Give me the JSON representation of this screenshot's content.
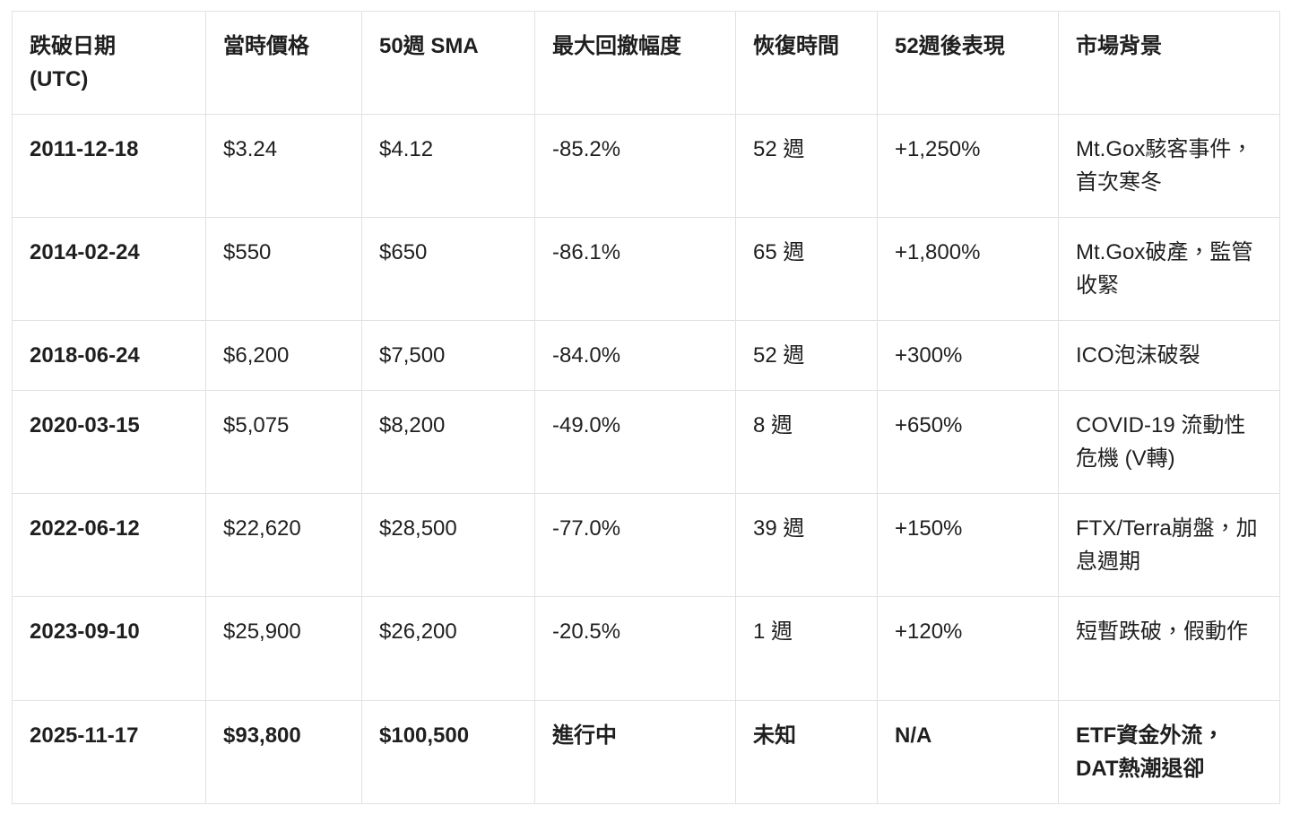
{
  "colors": {
    "background": "#ffffff",
    "border": "#e2e2e2",
    "text": "#1f1f1f"
  },
  "table": {
    "headers": [
      {
        "id": "break_date",
        "label": "跌破日期\n(UTC)"
      },
      {
        "id": "price",
        "label": "當時價格"
      },
      {
        "id": "sma",
        "label": "50週 SMA"
      },
      {
        "id": "drawdown",
        "label": "最大回撤幅度"
      },
      {
        "id": "recovery",
        "label": "恢復時間"
      },
      {
        "id": "performance",
        "label": "52週後表現"
      },
      {
        "id": "background",
        "label": "市場背景"
      }
    ],
    "rows": [
      {
        "break_date": "2011-12-18",
        "price": "$3.24",
        "sma": "$4.12",
        "drawdown": "-85.2%",
        "recovery": "52 週",
        "performance": "+1,250%",
        "background": "Mt.Gox駭客事件，首次寒冬",
        "bold_row": false
      },
      {
        "break_date": "2014-02-24",
        "price": "$550",
        "sma": "$650",
        "drawdown": "-86.1%",
        "recovery": "65 週",
        "performance": "+1,800%",
        "background": "Mt.Gox破產，監管收緊",
        "bold_row": false
      },
      {
        "break_date": "2018-06-24",
        "price": "$6,200",
        "sma": "$7,500",
        "drawdown": "-84.0%",
        "recovery": "52 週",
        "performance": "+300%",
        "background": "ICO泡沫破裂",
        "bold_row": false
      },
      {
        "break_date": "2020-03-15",
        "price": "$5,075",
        "sma": "$8,200",
        "drawdown": "-49.0%",
        "recovery": "8 週",
        "performance": "+650%",
        "background": "COVID-19 流動性危機 (V轉)",
        "bold_row": false
      },
      {
        "break_date": "2022-06-12",
        "price": "$22,620",
        "sma": "$28,500",
        "drawdown": "-77.0%",
        "recovery": "39 週",
        "performance": "+150%",
        "background": "FTX/Terra崩盤，加息週期",
        "bold_row": false
      },
      {
        "break_date": "2023-09-10",
        "price": "$25,900",
        "sma": "$26,200",
        "drawdown": "-20.5%",
        "recovery": "1 週",
        "performance": "+120%",
        "background": "短暫跌破，假動作",
        "bold_row": false
      },
      {
        "break_date": "2025-11-17",
        "price": "$93,800",
        "sma": "$100,500",
        "drawdown": "進行中",
        "recovery": "未知",
        "performance": "N/A",
        "background": "ETF資金外流，DAT熱潮退卻",
        "bold_row": true
      }
    ]
  }
}
